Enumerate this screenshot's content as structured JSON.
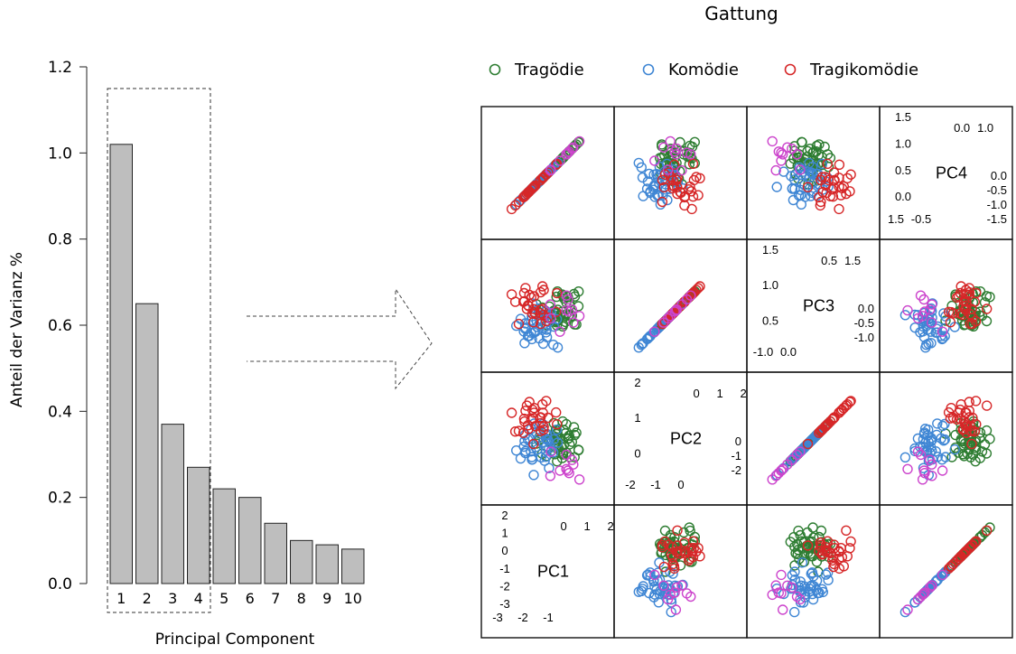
{
  "chart_data": [
    {
      "type": "bar",
      "xlabel": "Principal Component",
      "ylabel": "Anteil der Varianz %",
      "categories": [
        "1",
        "2",
        "3",
        "4",
        "5",
        "6",
        "7",
        "8",
        "9",
        "10"
      ],
      "values": [
        1.02,
        0.65,
        0.37,
        0.27,
        0.22,
        0.2,
        0.14,
        0.1,
        0.09,
        0.08
      ],
      "ylim": [
        0,
        1.2
      ],
      "yticks": [
        "0.0",
        "0.2",
        "0.4",
        "0.6",
        "0.8",
        "1.0",
        "1.2"
      ],
      "bar_color": "#bebebe",
      "highlight": {
        "style": "dashed box",
        "components": [
          1,
          2,
          3,
          4
        ]
      }
    },
    {
      "type": "scatter",
      "subtype": "scatterplot matrix",
      "legend_title": "Gattung",
      "legend": [
        {
          "name": "Tragödie",
          "color": "#2e7d32"
        },
        {
          "name": "Komödie",
          "color": "#3f86d4"
        },
        {
          "name": "Tragikomödie",
          "color": "#d62728"
        }
      ],
      "unlabeled_color": "#cc44cc",
      "variables": [
        "PC1",
        "PC2",
        "PC3",
        "PC4"
      ],
      "diagonal": [
        {
          "label": "PC1",
          "ticks_left": [
            "2",
            "1",
            "0",
            "-1",
            "-2",
            "-3"
          ],
          "ticks_top": [
            "0",
            "1",
            "2"
          ],
          "ticks_bottom": [
            "-3",
            "-2",
            "-1"
          ]
        },
        {
          "label": "PC2",
          "ticks_left": [
            "2",
            "1",
            "0"
          ],
          "ticks_top": [
            "0",
            "1",
            "2"
          ],
          "ticks_bottom": [
            "-2",
            "-1",
            "0"
          ],
          "ticks_right": [
            "0",
            "-1",
            "-2"
          ]
        },
        {
          "label": "PC3",
          "ticks_left": [
            "1.5",
            "1.0",
            "0.5"
          ],
          "ticks_top": [
            "0.5",
            "1.5"
          ],
          "ticks_bottom": [
            "-1.0",
            "0.0"
          ],
          "ticks_right": [
            "0.0",
            "-0.5",
            "-1.0"
          ]
        },
        {
          "label": "PC4",
          "ticks_left": [
            "1.5",
            "1.0",
            "0.5",
            "0.0"
          ],
          "ticks_top": [
            "0.0",
            "1.0"
          ],
          "ticks_bottom": [
            "1.5",
            "-0.5"
          ],
          "ticks_right": [
            "0.0",
            "-0.5",
            "-1.0",
            "-1.5"
          ]
        }
      ]
    }
  ]
}
